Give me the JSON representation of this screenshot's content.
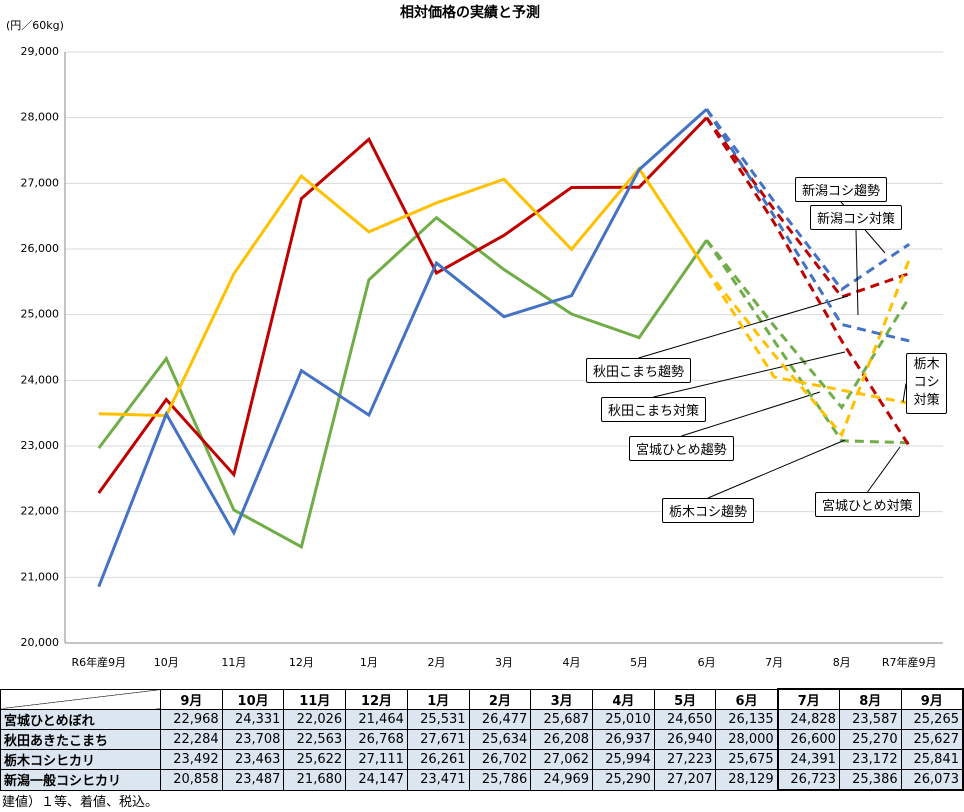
{
  "chart_data": {
    "type": "line",
    "title": "相対価格の実績と予測",
    "y_label": "(円／60kg)",
    "categories": [
      "R6年産9月",
      "10月",
      "11月",
      "12月",
      "1月",
      "2月",
      "3月",
      "4月",
      "5月",
      "6月",
      "7月",
      "8月",
      "R7年産9月"
    ],
    "ylim": [
      20000,
      29000
    ],
    "yticks": [
      {
        "value": 20000,
        "label": "20,000"
      },
      {
        "value": 21000,
        "label": "21,000"
      },
      {
        "value": 22000,
        "label": "22,000"
      },
      {
        "value": 23000,
        "label": "23,000"
      },
      {
        "value": 24000,
        "label": "24,000"
      },
      {
        "value": 25000,
        "label": "25,000"
      },
      {
        "value": 26000,
        "label": "26,000"
      },
      {
        "value": 27000,
        "label": "27,000"
      },
      {
        "value": 28000,
        "label": "28,000"
      },
      {
        "value": 29000,
        "label": "29,000"
      }
    ],
    "grid": true,
    "series": [
      {
        "color": "#70ad47",
        "values": [
          22968,
          24331,
          22026,
          21464,
          25531,
          26477,
          25687,
          25010,
          24650,
          26135,
          null,
          null,
          null
        ],
        "forecasts": [
          {
            "name": "宮城ひとめ趨勢",
            "values": [
              null,
              null,
              null,
              null,
              null,
              null,
              null,
              null,
              null,
              null,
              24828,
              23587,
              25265
            ]
          },
          {
            "name": "宮城ひとめ対策",
            "values": [
              null,
              null,
              null,
              null,
              null,
              null,
              null,
              null,
              null,
              null,
              24600,
              23080,
              23050
            ]
          }
        ]
      },
      {
        "color": "#c00000",
        "values": [
          22284,
          23708,
          22563,
          26768,
          27671,
          25634,
          26208,
          26937,
          26940,
          28000,
          null,
          null,
          null
        ],
        "forecasts": [
          {
            "name": "秋田こまち趨勢",
            "values": [
              null,
              null,
              null,
              null,
              null,
              null,
              null,
              null,
              null,
              null,
              26600,
              25270,
              25627
            ]
          },
          {
            "name": "秋田こまち対策",
            "values": [
              null,
              null,
              null,
              null,
              null,
              null,
              null,
              null,
              null,
              null,
              26400,
              24600,
              23000
            ]
          }
        ]
      },
      {
        "color": "#ffc000",
        "values": [
          23492,
          23463,
          25622,
          27111,
          26261,
          26702,
          27062,
          25994,
          27223,
          25675,
          null,
          null,
          null
        ],
        "forecasts": [
          {
            "name": "栃木コシ趨勢",
            "values": [
              null,
              null,
              null,
              null,
              null,
              null,
              null,
              null,
              null,
              null,
              24391,
              23172,
              25841
            ]
          },
          {
            "name": "栃木コシ対策",
            "values": [
              null,
              null,
              null,
              null,
              null,
              null,
              null,
              null,
              null,
              null,
              24050,
              23850,
              23650
            ]
          }
        ]
      },
      {
        "color": "#4472c4",
        "values": [
          20858,
          23487,
          21680,
          24147,
          23471,
          25786,
          24969,
          25290,
          27207,
          28129,
          null,
          null,
          null
        ],
        "forecasts": [
          {
            "name": "新潟コシ趨勢",
            "values": [
              null,
              null,
              null,
              null,
              null,
              null,
              null,
              null,
              null,
              null,
              26723,
              25386,
              26073
            ]
          },
          {
            "name": "新潟コシ対策",
            "values": [
              null,
              null,
              null,
              null,
              null,
              null,
              null,
              null,
              null,
              null,
              26500,
              24850,
              24600
            ]
          }
        ]
      }
    ]
  },
  "table": {
    "header": [
      "9月",
      "10月",
      "11月",
      "12月",
      "1月",
      "2月",
      "3月",
      "4月",
      "5月",
      "6月",
      "7月",
      "8月",
      "9月"
    ],
    "rows": [
      {
        "label": "宮城ひとめぼれ",
        "cells": [
          "22,968",
          "24,331",
          "22,026",
          "21,464",
          "25,531",
          "26,477",
          "25,687",
          "25,010",
          "24,650",
          "26,135",
          "24,828",
          "23,587",
          "25,265"
        ]
      },
      {
        "label": "秋田あきたこまち",
        "cells": [
          "22,284",
          "23,708",
          "22,563",
          "26,768",
          "27,671",
          "25,634",
          "26,208",
          "26,937",
          "26,940",
          "28,000",
          "26,600",
          "25,270",
          "25,627"
        ]
      },
      {
        "label": "栃木コシヒカリ",
        "cells": [
          "23,492",
          "23,463",
          "25,622",
          "27,111",
          "26,261",
          "26,702",
          "27,062",
          "25,994",
          "27,223",
          "25,675",
          "24,391",
          "23,172",
          "25,841"
        ]
      },
      {
        "label": "新潟一般コシヒカリ",
        "cells": [
          "20,858",
          "23,487",
          "21,680",
          "24,147",
          "23,471",
          "25,786",
          "24,969",
          "25,290",
          "27,207",
          "28,129",
          "26,723",
          "25,386",
          "26,073"
        ]
      }
    ],
    "note": "建値）１等、着値、税込。"
  }
}
